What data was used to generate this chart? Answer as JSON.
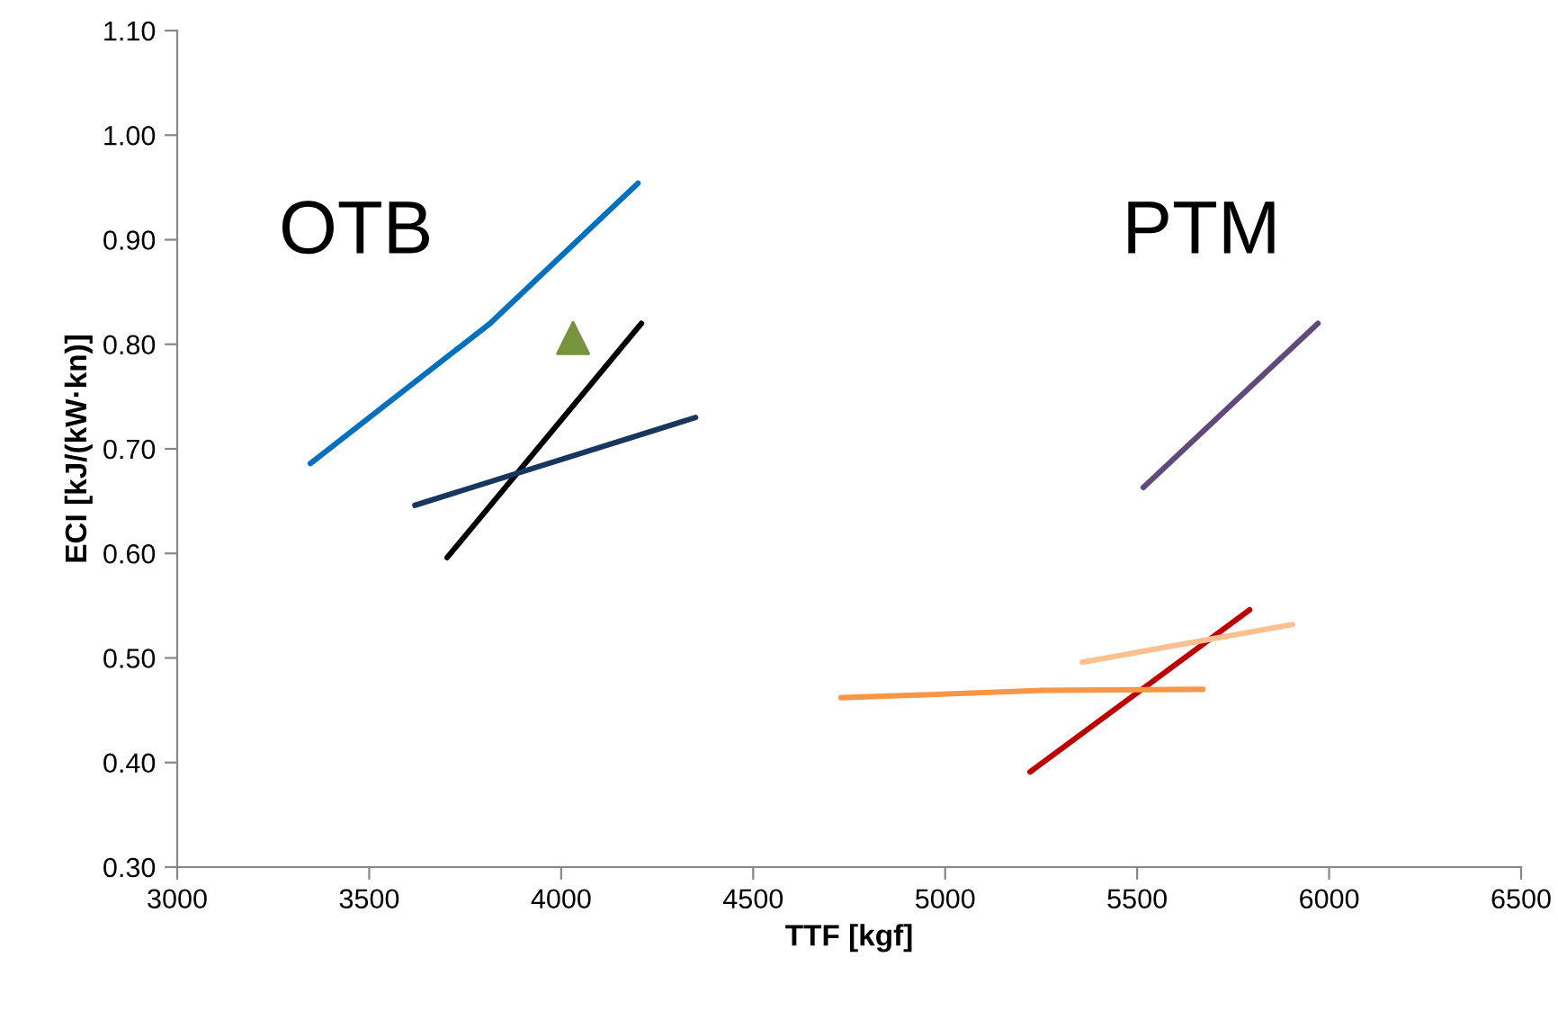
{
  "chart_data": {
    "type": "line",
    "xlabel": "TTF [kgf]",
    "ylabel": "ECI [kJ/(kW·kn)]",
    "xlim": [
      3000,
      6500
    ],
    "ylim": [
      0.3,
      1.1
    ],
    "xticks": [
      3000,
      3500,
      4000,
      4500,
      5000,
      5500,
      6000,
      6500
    ],
    "yticks": [
      {
        "value": 0.3,
        "label": "0.30"
      },
      {
        "value": 0.4,
        "label": "0.40"
      },
      {
        "value": 0.5,
        "label": "0.50"
      },
      {
        "value": 0.6,
        "label": "0.60"
      },
      {
        "value": 0.7,
        "label": "0.70"
      },
      {
        "value": 0.8,
        "label": "0.80"
      },
      {
        "value": 0.9,
        "label": "0.90"
      },
      {
        "value": 1.0,
        "label": "1.00"
      },
      {
        "value": 1.1,
        "label": "1.10"
      }
    ],
    "grid": false,
    "legend": false,
    "marker": "none",
    "line_style": "solid",
    "series": [
      {
        "color": "#0070c0",
        "x": [
          3347,
          3815,
          4200
        ],
        "values": [
          0.686,
          0.82,
          0.954
        ]
      },
      {
        "color": "#000000",
        "x": [
          3703,
          4209
        ],
        "values": [
          0.596,
          0.82
        ]
      },
      {
        "color": "#17375e",
        "x": [
          3619,
          4350
        ],
        "values": [
          0.646,
          0.73
        ]
      },
      {
        "type": "scatter",
        "marker": "triangle",
        "color": "#77933c",
        "x": [
          4031
        ],
        "values": [
          0.806
        ]
      },
      {
        "color": "#604a7b",
        "x": [
          5516,
          5971
        ],
        "values": [
          0.663,
          0.82
        ]
      },
      {
        "color": "#c00000",
        "x": [
          5221,
          5793
        ],
        "values": [
          0.391,
          0.546
        ]
      },
      {
        "color": "#fac090",
        "x": [
          5357,
          5905
        ],
        "values": [
          0.496,
          0.532
        ]
      },
      {
        "color": "#f79646",
        "x": [
          4729,
          4963,
          5254,
          5671
        ],
        "values": [
          0.462,
          0.465,
          0.469,
          0.47
        ]
      }
    ],
    "annotations": [
      "OTB",
      "PTM"
    ]
  }
}
